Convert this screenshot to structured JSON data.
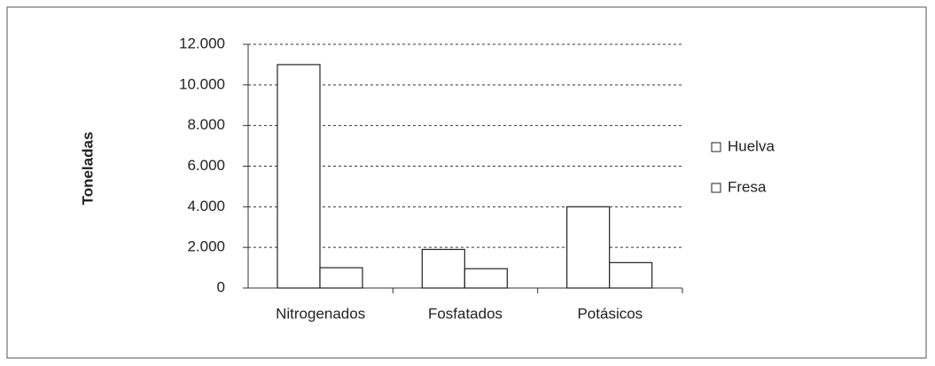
{
  "chart_data": {
    "type": "bar",
    "y_label": "Toneladas",
    "categories": [
      "Nitrogenados",
      "Fosfatados",
      "Potásicos"
    ],
    "series": [
      {
        "name": "Huelva",
        "color": "#ffffff",
        "values": [
          11000,
          1900,
          4000
        ]
      },
      {
        "name": "Fresa",
        "color": "#ffffff",
        "values": [
          1000,
          950,
          1250
        ]
      }
    ],
    "ylim": [
      0,
      12000
    ],
    "yticks": [
      0,
      {
        "value": 2000,
        "label": "2.000"
      },
      {
        "value": 4000,
        "label": "4.000"
      },
      {
        "value": 6000,
        "label": "6.000"
      },
      {
        "value": 8000,
        "label": "8.000"
      },
      {
        "value": 10000,
        "label": "10.000"
      },
      {
        "value": 12000,
        "label": "12.000"
      }
    ],
    "grid": true,
    "legend": "right"
  }
}
